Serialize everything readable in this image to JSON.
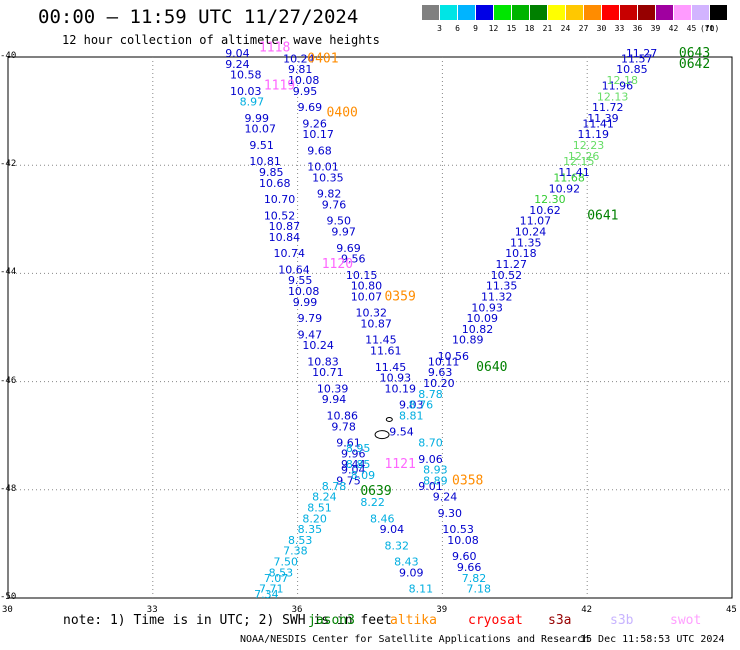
{
  "header": {
    "title": "00:00 – 11:59 UTC 11/27/2024",
    "subtitle": "12 hour collection of altimeter wave heights"
  },
  "colorbar": {
    "colors": [
      "#808080",
      "#00e5e5",
      "#00b4ff",
      "#0000e6",
      "#00e600",
      "#00b400",
      "#008000",
      "#ffff00",
      "#ffc800",
      "#ff8c00",
      "#ff0000",
      "#c80000",
      "#960000",
      "#a000a0",
      "#ff9bff",
      "#d2b4ff",
      "#000000"
    ],
    "labels": [
      "3",
      "6",
      "9",
      "12",
      "15",
      "18",
      "21",
      "24",
      "27",
      "30",
      "33",
      "36",
      "39",
      "42",
      "45",
      "70"
    ],
    "unit": "(ft)"
  },
  "axes": {
    "lat_labels": [
      "-40",
      "-42",
      "-44",
      "-46",
      "-48",
      "-50"
    ],
    "lon_labels": [
      "30",
      "33",
      "36",
      "39",
      "42",
      "45"
    ]
  },
  "tracks": [
    {
      "time": "0401",
      "color": "#ff8c00"
    },
    {
      "time": "0400",
      "color": "#ff8c00"
    },
    {
      "time": "0359",
      "color": "#ff8c00"
    },
    {
      "time": "0358",
      "color": "#ff8c00"
    },
    {
      "time": "0643",
      "color": "#008000"
    },
    {
      "time": "0642",
      "color": "#008000"
    },
    {
      "time": "0641",
      "color": "#008000"
    },
    {
      "time": "0640",
      "color": "#008000"
    },
    {
      "time": "0639",
      "color": "#008000"
    },
    {
      "time": "1118",
      "color": "#ff66ff"
    },
    {
      "time": "1119",
      "color": "#ff66ff"
    },
    {
      "time": "1120",
      "color": "#ff66ff"
    },
    {
      "time": "1121",
      "color": "#ff66ff"
    }
  ],
  "track_labels": [
    {
      "text": "0401",
      "color": "#ff8c00",
      "lon": 36.2,
      "lat": -40.1
    },
    {
      "text": "0400",
      "color": "#ff8c00",
      "lon": 36.6,
      "lat": -41.1
    },
    {
      "text": "0359",
      "color": "#ff8c00",
      "lon": 37.8,
      "lat": -44.5
    },
    {
      "text": "0358",
      "color": "#ff8c00",
      "lon": 39.2,
      "lat": -47.9
    },
    {
      "text": "0643",
      "color": "#008000",
      "lon": 43.9,
      "lat": -40.0
    },
    {
      "text": "0642",
      "color": "#008000",
      "lon": 43.9,
      "lat": -40.2
    },
    {
      "text": "0641",
      "color": "#008000",
      "lon": 42.0,
      "lat": -43.0
    },
    {
      "text": "0640",
      "color": "#008000",
      "lon": 39.7,
      "lat": -45.8
    },
    {
      "text": "0639",
      "color": "#008000",
      "lon": 37.3,
      "lat": -48.1
    },
    {
      "text": "1118",
      "color": "#ff66ff",
      "lon": 35.2,
      "lat": -39.9
    },
    {
      "text": "1119",
      "color": "#ff66ff",
      "lon": 35.3,
      "lat": -40.6
    },
    {
      "text": "1120",
      "color": "#ff66ff",
      "lon": 36.5,
      "lat": -43.9
    },
    {
      "text": "1121",
      "color": "#ff66ff",
      "lon": 37.8,
      "lat": -47.6
    }
  ],
  "swh_values": [
    {
      "v": "9.04",
      "c": "#0000cd",
      "lon": 34.5,
      "lat": -40.0
    },
    {
      "v": "9.24",
      "c": "#0000cd",
      "lon": 34.5,
      "lat": -40.2
    },
    {
      "v": "10.58",
      "c": "#0000cd",
      "lon": 34.6,
      "lat": -40.4
    },
    {
      "v": "10.03",
      "c": "#0000cd",
      "lon": 34.6,
      "lat": -40.7
    },
    {
      "v": "8.97",
      "c": "#00aee0",
      "lon": 34.8,
      "lat": -40.9
    },
    {
      "v": "9.99",
      "c": "#0000cd",
      "lon": 34.9,
      "lat": -41.2
    },
    {
      "v": "10.07",
      "c": "#0000cd",
      "lon": 34.9,
      "lat": -41.4
    },
    {
      "v": "9.51",
      "c": "#0000cd",
      "lon": 35.0,
      "lat": -41.7
    },
    {
      "v": "10.81",
      "c": "#0000cd",
      "lon": 35.0,
      "lat": -42.0
    },
    {
      "v": "9.85",
      "c": "#0000cd",
      "lon": 35.2,
      "lat": -42.2
    },
    {
      "v": "10.68",
      "c": "#0000cd",
      "lon": 35.2,
      "lat": -42.4
    },
    {
      "v": "10.70",
      "c": "#0000cd",
      "lon": 35.3,
      "lat": -42.7
    },
    {
      "v": "10.52",
      "c": "#0000cd",
      "lon": 35.3,
      "lat": -43.0
    },
    {
      "v": "10.87",
      "c": "#0000cd",
      "lon": 35.4,
      "lat": -43.2
    },
    {
      "v": "10.84",
      "c": "#0000cd",
      "lon": 35.4,
      "lat": -43.4
    },
    {
      "v": "10.74",
      "c": "#0000cd",
      "lon": 35.5,
      "lat": -43.7
    },
    {
      "v": "10.64",
      "c": "#0000cd",
      "lon": 35.6,
      "lat": -44.0
    },
    {
      "v": "9.55",
      "c": "#0000cd",
      "lon": 35.8,
      "lat": -44.2
    },
    {
      "v": "10.08",
      "c": "#0000cd",
      "lon": 35.8,
      "lat": -44.4
    },
    {
      "v": "9.99",
      "c": "#0000cd",
      "lon": 35.9,
      "lat": -44.6
    },
    {
      "v": "9.79",
      "c": "#0000cd",
      "lon": 36.0,
      "lat": -44.9
    },
    {
      "v": "9.47",
      "c": "#0000cd",
      "lon": 36.0,
      "lat": -45.2
    },
    {
      "v": "10.24",
      "c": "#0000cd",
      "lon": 36.1,
      "lat": -45.4
    },
    {
      "v": "10.83",
      "c": "#0000cd",
      "lon": 36.2,
      "lat": -45.7
    },
    {
      "v": "10.71",
      "c": "#0000cd",
      "lon": 36.3,
      "lat": -45.9
    },
    {
      "v": "10.39",
      "c": "#0000cd",
      "lon": 36.4,
      "lat": -46.2
    },
    {
      "v": "9.94",
      "c": "#0000cd",
      "lon": 36.5,
      "lat": -46.4
    },
    {
      "v": "10.86",
      "c": "#0000cd",
      "lon": 36.6,
      "lat": -46.7
    },
    {
      "v": "9.78",
      "c": "#0000cd",
      "lon": 36.7,
      "lat": -46.9
    },
    {
      "v": "9.61",
      "c": "#0000cd",
      "lon": 36.8,
      "lat": -47.2
    },
    {
      "v": "9.96",
      "c": "#0000cd",
      "lon": 36.9,
      "lat": -47.4
    },
    {
      "v": "9.44",
      "c": "#0000cd",
      "lon": 36.9,
      "lat": -47.6
    },
    {
      "v": "9.04",
      "c": "#0000cd",
      "lon": 36.9,
      "lat": -47.7
    },
    {
      "v": "9.75",
      "c": "#0000cd",
      "lon": 36.8,
      "lat": -47.9
    },
    {
      "v": "10.24",
      "c": "#0000cd",
      "lon": 35.7,
      "lat": -40.1
    },
    {
      "v": "9.81",
      "c": "#0000cd",
      "lon": 35.8,
      "lat": -40.3
    },
    {
      "v": "10.08",
      "c": "#0000cd",
      "lon": 35.8,
      "lat": -40.5
    },
    {
      "v": "9.95",
      "c": "#0000cd",
      "lon": 35.9,
      "lat": -40.7
    },
    {
      "v": "9.69",
      "c": "#0000cd",
      "lon": 36.0,
      "lat": -41.0
    },
    {
      "v": "9.26",
      "c": "#0000cd",
      "lon": 36.1,
      "lat": -41.3
    },
    {
      "v": "10.17",
      "c": "#0000cd",
      "lon": 36.1,
      "lat": -41.5
    },
    {
      "v": "9.68",
      "c": "#0000cd",
      "lon": 36.2,
      "lat": -41.8
    },
    {
      "v": "10.01",
      "c": "#0000cd",
      "lon": 36.2,
      "lat": -42.1
    },
    {
      "v": "10.35",
      "c": "#0000cd",
      "lon": 36.3,
      "lat": -42.3
    },
    {
      "v": "9.82",
      "c": "#0000cd",
      "lon": 36.4,
      "lat": -42.6
    },
    {
      "v": "9.76",
      "c": "#0000cd",
      "lon": 36.5,
      "lat": -42.8
    },
    {
      "v": "9.50",
      "c": "#0000cd",
      "lon": 36.6,
      "lat": -43.1
    },
    {
      "v": "9.97",
      "c": "#0000cd",
      "lon": 36.7,
      "lat": -43.3
    },
    {
      "v": "9.69",
      "c": "#0000cd",
      "lon": 36.8,
      "lat": -43.6
    },
    {
      "v": "9.56",
      "c": "#0000cd",
      "lon": 36.9,
      "lat": -43.8
    },
    {
      "v": "10.15",
      "c": "#0000cd",
      "lon": 37.0,
      "lat": -44.1
    },
    {
      "v": "10.80",
      "c": "#0000cd",
      "lon": 37.1,
      "lat": -44.3
    },
    {
      "v": "10.07",
      "c": "#0000cd",
      "lon": 37.1,
      "lat": -44.5
    },
    {
      "v": "10.32",
      "c": "#0000cd",
      "lon": 37.2,
      "lat": -44.8
    },
    {
      "v": "10.87",
      "c": "#0000cd",
      "lon": 37.3,
      "lat": -45.0
    },
    {
      "v": "11.45",
      "c": "#0000cd",
      "lon": 37.4,
      "lat": -45.3
    },
    {
      "v": "11.61",
      "c": "#0000cd",
      "lon": 37.5,
      "lat": -45.5
    },
    {
      "v": "11.45",
      "c": "#0000cd",
      "lon": 37.6,
      "lat": -45.8
    },
    {
      "v": "10.93",
      "c": "#0000cd",
      "lon": 37.7,
      "lat": -46.0
    },
    {
      "v": "10.19",
      "c": "#0000cd",
      "lon": 37.8,
      "lat": -46.2
    },
    {
      "v": "9.03",
      "c": "#0000cd",
      "lon": 38.1,
      "lat": -46.5
    },
    {
      "v": "9.54",
      "c": "#0000cd",
      "lon": 37.9,
      "lat": -47.0
    },
    {
      "v": "9.06",
      "c": "#0000cd",
      "lon": 38.5,
      "lat": -47.5
    },
    {
      "v": "8.93",
      "c": "#00aee0",
      "lon": 38.6,
      "lat": -47.7
    },
    {
      "v": "8.89",
      "c": "#00aee0",
      "lon": 38.6,
      "lat": -47.9
    },
    {
      "v": "9.01",
      "c": "#0000cd",
      "lon": 38.5,
      "lat": -48.0
    },
    {
      "v": "9.24",
      "c": "#0000cd",
      "lon": 38.8,
      "lat": -48.2
    },
    {
      "v": "9.30",
      "c": "#0000cd",
      "lon": 38.9,
      "lat": -48.5
    },
    {
      "v": "10.53",
      "c": "#0000cd",
      "lon": 39.0,
      "lat": -48.8
    },
    {
      "v": "10.08",
      "c": "#0000cd",
      "lon": 39.1,
      "lat": -49.0
    },
    {
      "v": "9.60",
      "c": "#0000cd",
      "lon": 39.2,
      "lat": -49.3
    },
    {
      "v": "9.66",
      "c": "#0000cd",
      "lon": 39.3,
      "lat": -49.5
    },
    {
      "v": "7.82",
      "c": "#00aee0",
      "lon": 39.4,
      "lat": -49.7
    },
    {
      "v": "7.18",
      "c": "#00aee0",
      "lon": 39.5,
      "lat": -49.9
    },
    {
      "v": "8.78",
      "c": "#00aee0",
      "lon": 36.5,
      "lat": -48.0
    },
    {
      "v": "8.24",
      "c": "#00aee0",
      "lon": 36.3,
      "lat": -48.2
    },
    {
      "v": "8.51",
      "c": "#00aee0",
      "lon": 36.2,
      "lat": -48.4
    },
    {
      "v": "8.20",
      "c": "#00aee0",
      "lon": 36.1,
      "lat": -48.6
    },
    {
      "v": "8.35",
      "c": "#00aee0",
      "lon": 36.0,
      "lat": -48.8
    },
    {
      "v": "8.53",
      "c": "#00aee0",
      "lon": 35.8,
      "lat": -49.0
    },
    {
      "v": "7.38",
      "c": "#00aee0",
      "lon": 35.7,
      "lat": -49.2
    },
    {
      "v": "7.50",
      "c": "#00aee0",
      "lon": 35.5,
      "lat": -49.4
    },
    {
      "v": "8.53",
      "c": "#00aee0",
      "lon": 35.4,
      "lat": -49.6
    },
    {
      "v": "7.07",
      "c": "#00aee0",
      "lon": 35.3,
      "lat": -49.7
    },
    {
      "v": "7.71",
      "c": "#00aee0",
      "lon": 35.2,
      "lat": -49.9
    },
    {
      "v": "7.34",
      "c": "#00aee0",
      "lon": 35.1,
      "lat": -50.0
    },
    {
      "v": "8.95",
      "c": "#00aee0",
      "lon": 37.0,
      "lat": -47.3
    },
    {
      "v": "8.85",
      "c": "#00aee0",
      "lon": 37.0,
      "lat": -47.6
    },
    {
      "v": "8.09",
      "c": "#00aee0",
      "lon": 37.1,
      "lat": -47.8
    },
    {
      "v": "8.22",
      "c": "#00aee0",
      "lon": 37.3,
      "lat": -48.3
    },
    {
      "v": "8.46",
      "c": "#00aee0",
      "lon": 37.5,
      "lat": -48.6
    },
    {
      "v": "9.04",
      "c": "#0000cd",
      "lon": 37.7,
      "lat": -48.8
    },
    {
      "v": "8.32",
      "c": "#00aee0",
      "lon": 37.8,
      "lat": -49.1
    },
    {
      "v": "8.43",
      "c": "#00aee0",
      "lon": 38.0,
      "lat": -49.4
    },
    {
      "v": "9.09",
      "c": "#0000cd",
      "lon": 38.1,
      "lat": -49.6
    },
    {
      "v": "8.11",
      "c": "#00aee0",
      "lon": 38.3,
      "lat": -49.9
    },
    {
      "v": "8.76",
      "c": "#00aee0",
      "lon": 38.3,
      "lat": -46.5
    },
    {
      "v": "8.78",
      "c": "#00aee0",
      "lon": 38.5,
      "lat": -46.3
    },
    {
      "v": "8.81",
      "c": "#00aee0",
      "lon": 38.1,
      "lat": -46.7
    },
    {
      "v": "8.70",
      "c": "#00aee0",
      "lon": 38.5,
      "lat": -47.2
    },
    {
      "v": "10.20",
      "c": "#0000cd",
      "lon": 38.6,
      "lat": -46.1
    },
    {
      "v": "9.63",
      "c": "#0000cd",
      "lon": 38.7,
      "lat": -45.9
    },
    {
      "v": "10.11",
      "c": "#0000cd",
      "lon": 38.7,
      "lat": -45.7
    },
    {
      "v": "10.56",
      "c": "#0000cd",
      "lon": 38.9,
      "lat": -45.6
    },
    {
      "v": "10.89",
      "c": "#0000cd",
      "lon": 39.2,
      "lat": -45.3
    },
    {
      "v": "10.82",
      "c": "#0000cd",
      "lon": 39.4,
      "lat": -45.1
    },
    {
      "v": "10.09",
      "c": "#0000cd",
      "lon": 39.5,
      "lat": -44.9
    },
    {
      "v": "10.93",
      "c": "#0000cd",
      "lon": 39.6,
      "lat": -44.7
    },
    {
      "v": "11.32",
      "c": "#0000cd",
      "lon": 39.8,
      "lat": -44.5
    },
    {
      "v": "11.35",
      "c": "#0000cd",
      "lon": 39.9,
      "lat": -44.3
    },
    {
      "v": "10.52",
      "c": "#0000cd",
      "lon": 40.0,
      "lat": -44.1
    },
    {
      "v": "11.27",
      "c": "#0000cd",
      "lon": 40.1,
      "lat": -43.9
    },
    {
      "v": "10.18",
      "c": "#0000cd",
      "lon": 40.3,
      "lat": -43.7
    },
    {
      "v": "11.35",
      "c": "#0000cd",
      "lon": 40.4,
      "lat": -43.5
    },
    {
      "v": "10.24",
      "c": "#0000cd",
      "lon": 40.5,
      "lat": -43.3
    },
    {
      "v": "11.07",
      "c": "#0000cd",
      "lon": 40.6,
      "lat": -43.1
    },
    {
      "v": "10.62",
      "c": "#0000cd",
      "lon": 40.8,
      "lat": -42.9
    },
    {
      "v": "12.30",
      "c": "#33cc33",
      "lon": 40.9,
      "lat": -42.7
    },
    {
      "v": "10.92",
      "c": "#0000cd",
      "lon": 41.2,
      "lat": -42.5
    },
    {
      "v": "11.68",
      "c": "#33cc33",
      "lon": 41.3,
      "lat": -42.3
    },
    {
      "v": "11.41",
      "c": "#0000cd",
      "lon": 41.4,
      "lat": -42.2
    },
    {
      "v": "12.15",
      "c": "#66dd66",
      "lon": 41.5,
      "lat": -42.0
    },
    {
      "v": "12.26",
      "c": "#66dd66",
      "lon": 41.6,
      "lat": -41.9
    },
    {
      "v": "12.23",
      "c": "#66dd66",
      "lon": 41.7,
      "lat": -41.7
    },
    {
      "v": "11.19",
      "c": "#0000cd",
      "lon": 41.8,
      "lat": -41.5
    },
    {
      "v": "11.41",
      "c": "#0000cd",
      "lon": 41.9,
      "lat": -41.3
    },
    {
      "v": "11.39",
      "c": "#0000cd",
      "lon": 42.0,
      "lat": -41.2
    },
    {
      "v": "11.72",
      "c": "#0000cd",
      "lon": 42.1,
      "lat": -41.0
    },
    {
      "v": "12.13",
      "c": "#66dd66",
      "lon": 42.2,
      "lat": -40.8
    },
    {
      "v": "11.96",
      "c": "#0000cd",
      "lon": 42.3,
      "lat": -40.6
    },
    {
      "v": "12.18",
      "c": "#66dd66",
      "lon": 42.4,
      "lat": -40.5
    },
    {
      "v": "10.85",
      "c": "#0000cd",
      "lon": 42.6,
      "lat": -40.3
    },
    {
      "v": "11.57",
      "c": "#0000cd",
      "lon": 42.7,
      "lat": -40.1
    },
    {
      "v": "11.27",
      "c": "#0000cd",
      "lon": 42.8,
      "lat": -40.0
    }
  ],
  "footer": {
    "note": "note: 1) Time is in UTC; 2) SWH is in feet",
    "legend": [
      {
        "label": "jason3",
        "color": "#008000"
      },
      {
        "label": "altika",
        "color": "#ff8c00"
      },
      {
        "label": "cryosat",
        "color": "#ff0000"
      },
      {
        "label": "s3a",
        "color": "#960000"
      },
      {
        "label": "s3b",
        "color": "#c8b4ff"
      },
      {
        "label": "swot",
        "color": "#ffa0ff"
      }
    ],
    "credit": "NOAA/NESDIS Center for Satellite Applications and Research",
    "timestamp": "15 Dec 11:58:53 UTC 2024"
  }
}
